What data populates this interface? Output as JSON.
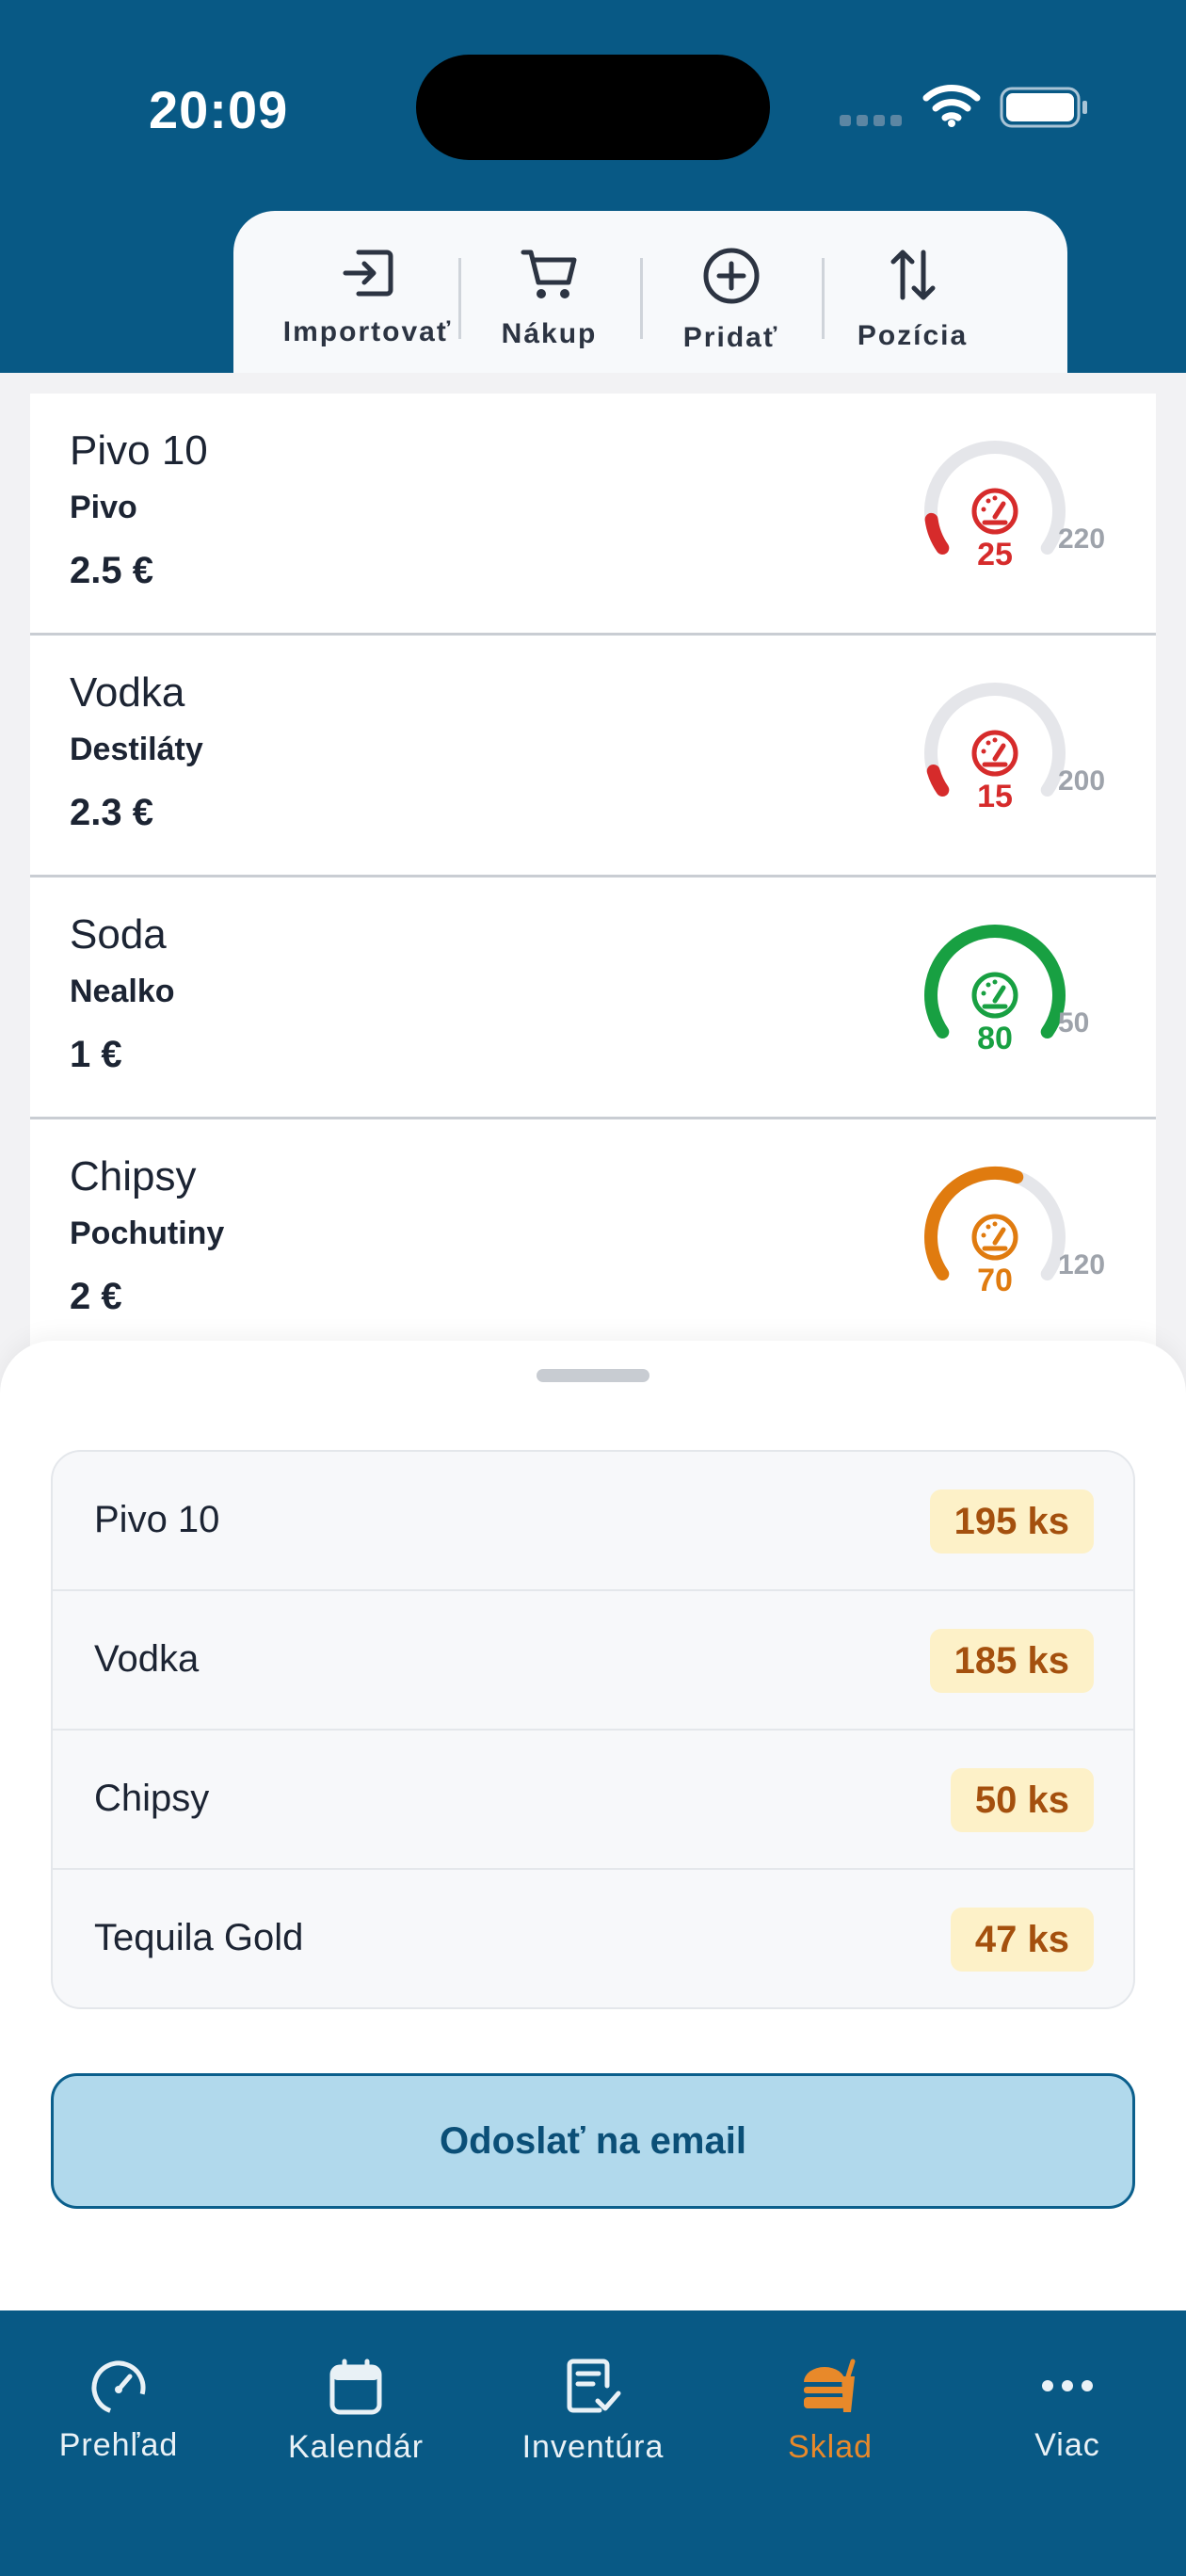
{
  "status_bar": {
    "time": "20:09"
  },
  "toolbar": {
    "items": [
      {
        "label": "Importovať",
        "icon": "import-icon"
      },
      {
        "label": "Nákup",
        "icon": "cart-icon"
      },
      {
        "label": "Pridať",
        "icon": "add-circle-icon"
      },
      {
        "label": "Pozícia",
        "icon": "sort-arrows-icon"
      }
    ]
  },
  "inventory": {
    "items": [
      {
        "name": "Pivo 10",
        "category": "Pivo",
        "price": "2.5 €",
        "current": "25",
        "max": "220",
        "level": 0.11,
        "status_color": "#d62b2b"
      },
      {
        "name": "Vodka",
        "category": "Destiláty",
        "price": "2.3 €",
        "current": "15",
        "max": "200",
        "level": 0.075,
        "status_color": "#d62b2b"
      },
      {
        "name": "Soda",
        "category": "Nealko",
        "price": "1 €",
        "current": "80",
        "max": "50",
        "level": 1.0,
        "status_color": "#18a042"
      },
      {
        "name": "Chipsy",
        "category": "Pochutiny",
        "price": "2 €",
        "current": "70",
        "max": "120",
        "level": 0.58,
        "status_color": "#e07b0f"
      }
    ]
  },
  "shortage": {
    "rows": [
      {
        "name": "Pivo 10",
        "qty": "195 ks"
      },
      {
        "name": "Vodka",
        "qty": "185 ks"
      },
      {
        "name": "Chipsy",
        "qty": "50 ks"
      },
      {
        "name": "Tequila Gold",
        "qty": "47 ks"
      }
    ],
    "send_label": "Odoslať na email"
  },
  "tabbar": {
    "items": [
      {
        "label": "Prehľad",
        "icon": "speedometer-icon"
      },
      {
        "label": "Kalendár",
        "icon": "calendar-icon"
      },
      {
        "label": "Inventúra",
        "icon": "checklist-icon"
      },
      {
        "label": "Sklad",
        "icon": "food-icon",
        "active": true
      },
      {
        "label": "Viac",
        "icon": "more-icon"
      }
    ]
  },
  "colors": {
    "brand": "#085985",
    "accent": "#e8892a",
    "gauge_track": "#e5e6ea"
  }
}
